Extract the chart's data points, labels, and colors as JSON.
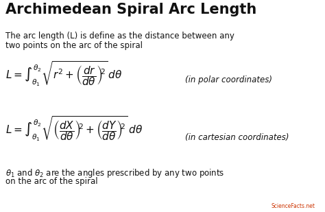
{
  "title": "Archimedean Spiral Arc Length",
  "background_color": "#ffffff",
  "text_color": "#111111",
  "description_line1": "The arc length (L) is define as the distance between any",
  "description_line2": "two points on the arc of the spiral",
  "eq1_note": "(in polar coordinates)",
  "eq2_note": "(in cartesian coordinates)",
  "footer_line1": "$\\theta_1$ and $\\theta_2$ are the angles prescribed by any two points",
  "footer_line2": "on the arc of the spiral",
  "watermark": "ScienceFacts.net",
  "watermark_color": "#cc3300",
  "title_fontsize": 15,
  "body_fontsize": 8.5,
  "eq_fontsize": 11,
  "note_fontsize": 8.5,
  "footer_fontsize": 8.5,
  "watermark_fontsize": 5.5
}
